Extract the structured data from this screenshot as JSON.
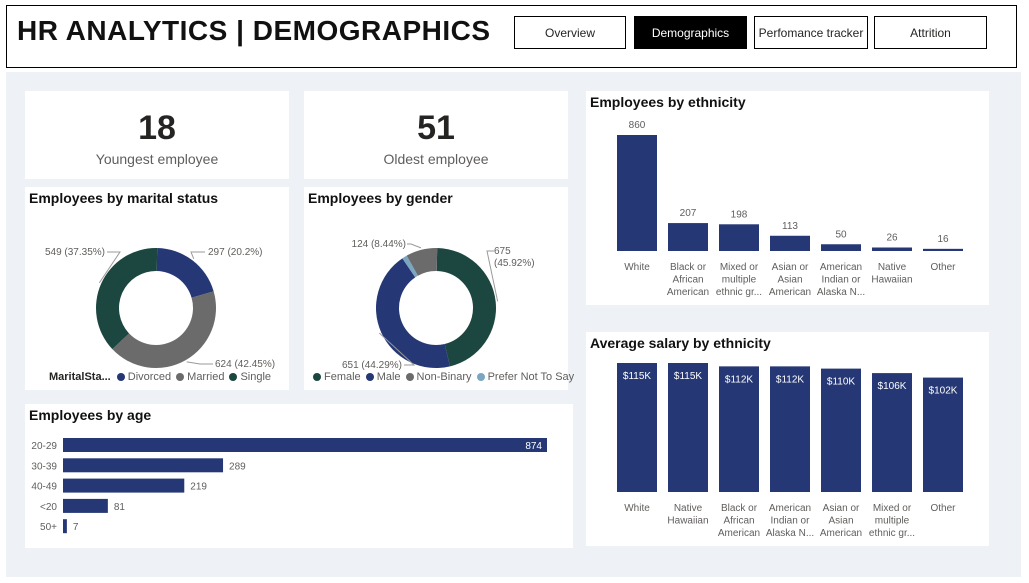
{
  "header": {
    "title": "HR ANALYTICS | DEMOGRAPHICS",
    "nav": [
      {
        "label": "Overview",
        "active": false
      },
      {
        "label": "Demographics",
        "active": true
      },
      {
        "label": "Perfomance tracker",
        "active": false
      },
      {
        "label": "Attrition",
        "active": false
      }
    ]
  },
  "kpis": {
    "youngest": {
      "value": "18",
      "label": "Youngest employee"
    },
    "oldest": {
      "value": "51",
      "label": "Oldest employee"
    }
  },
  "colors": {
    "navy": "#253875",
    "dark_green": "#1c4640",
    "gray": "#6b6b6b",
    "light_blue": "#7aa6c2",
    "canvas_bg": "#eef1f6"
  },
  "chart_data": [
    {
      "id": "marital",
      "type": "pie",
      "donut": true,
      "title": "Employees by marital status",
      "legend_title": "MaritalSta...",
      "legend_placement": "bottom",
      "slices": [
        {
          "name": "Divorced",
          "value": 297,
          "label": "297 (20.2%)",
          "color": "#253875"
        },
        {
          "name": "Married",
          "value": 624,
          "label": "624 (42.45%)",
          "color": "#6b6b6b"
        },
        {
          "name": "Single",
          "value": 549,
          "label": "549 (37.35%)",
          "color": "#1c4640"
        }
      ]
    },
    {
      "id": "gender",
      "type": "pie",
      "donut": true,
      "title": "Employees by gender",
      "legend_placement": "bottom",
      "slices": [
        {
          "name": "Female",
          "value": 675,
          "label": "675 (45.92%)",
          "color": "#1c4640"
        },
        {
          "name": "Male",
          "value": 651,
          "label": "651 (44.29%)",
          "color": "#253875"
        },
        {
          "name": "Prefer Not To Say",
          "value": 20,
          "label": "",
          "color": "#7aa6c2"
        },
        {
          "name": "Non-Binary",
          "value": 124,
          "label": "124 (8.44%)",
          "color": "#6b6b6b"
        }
      ],
      "legend_order": [
        "Female",
        "Male",
        "Non-Binary",
        "Prefer Not To Say"
      ]
    },
    {
      "id": "age",
      "type": "bar",
      "orientation": "horizontal",
      "title": "Employees by age",
      "categories": [
        "20-29",
        "30-39",
        "40-49",
        "<20",
        "50+"
      ],
      "values": [
        874,
        289,
        219,
        81,
        7
      ],
      "xlim": [
        0,
        900
      ]
    },
    {
      "id": "ethnicity",
      "type": "bar",
      "title": "Employees by ethnicity",
      "categories": [
        [
          "White"
        ],
        [
          "Black or",
          "African",
          "American"
        ],
        [
          "Mixed or",
          "multiple",
          "ethnic gr..."
        ],
        [
          "Asian or",
          "Asian",
          "American"
        ],
        [
          "American",
          "Indian or",
          "Alaska N..."
        ],
        [
          "Native",
          "Hawaiian"
        ],
        [
          "Other"
        ]
      ],
      "values": [
        860,
        207,
        198,
        113,
        50,
        26,
        16
      ],
      "data_labels": [
        "860",
        "207",
        "198",
        "113",
        "50",
        "26",
        "16"
      ],
      "ylim": [
        0,
        860
      ]
    },
    {
      "id": "salary",
      "type": "bar",
      "title": "Average salary by ethnicity",
      "categories": [
        [
          "White"
        ],
        [
          "Native",
          "Hawaiian"
        ],
        [
          "Black or",
          "African",
          "American"
        ],
        [
          "American",
          "Indian or",
          "Alaska N..."
        ],
        [
          "Asian or",
          "Asian",
          "American"
        ],
        [
          "Mixed or",
          "multiple",
          "ethnic gr..."
        ],
        [
          "Other"
        ]
      ],
      "values": [
        115,
        115,
        112,
        112,
        110,
        106,
        102
      ],
      "data_labels": [
        "$115K",
        "$115K",
        "$112K",
        "$112K",
        "$110K",
        "$106K",
        "$102K"
      ],
      "ylim": [
        0,
        115
      ]
    }
  ]
}
